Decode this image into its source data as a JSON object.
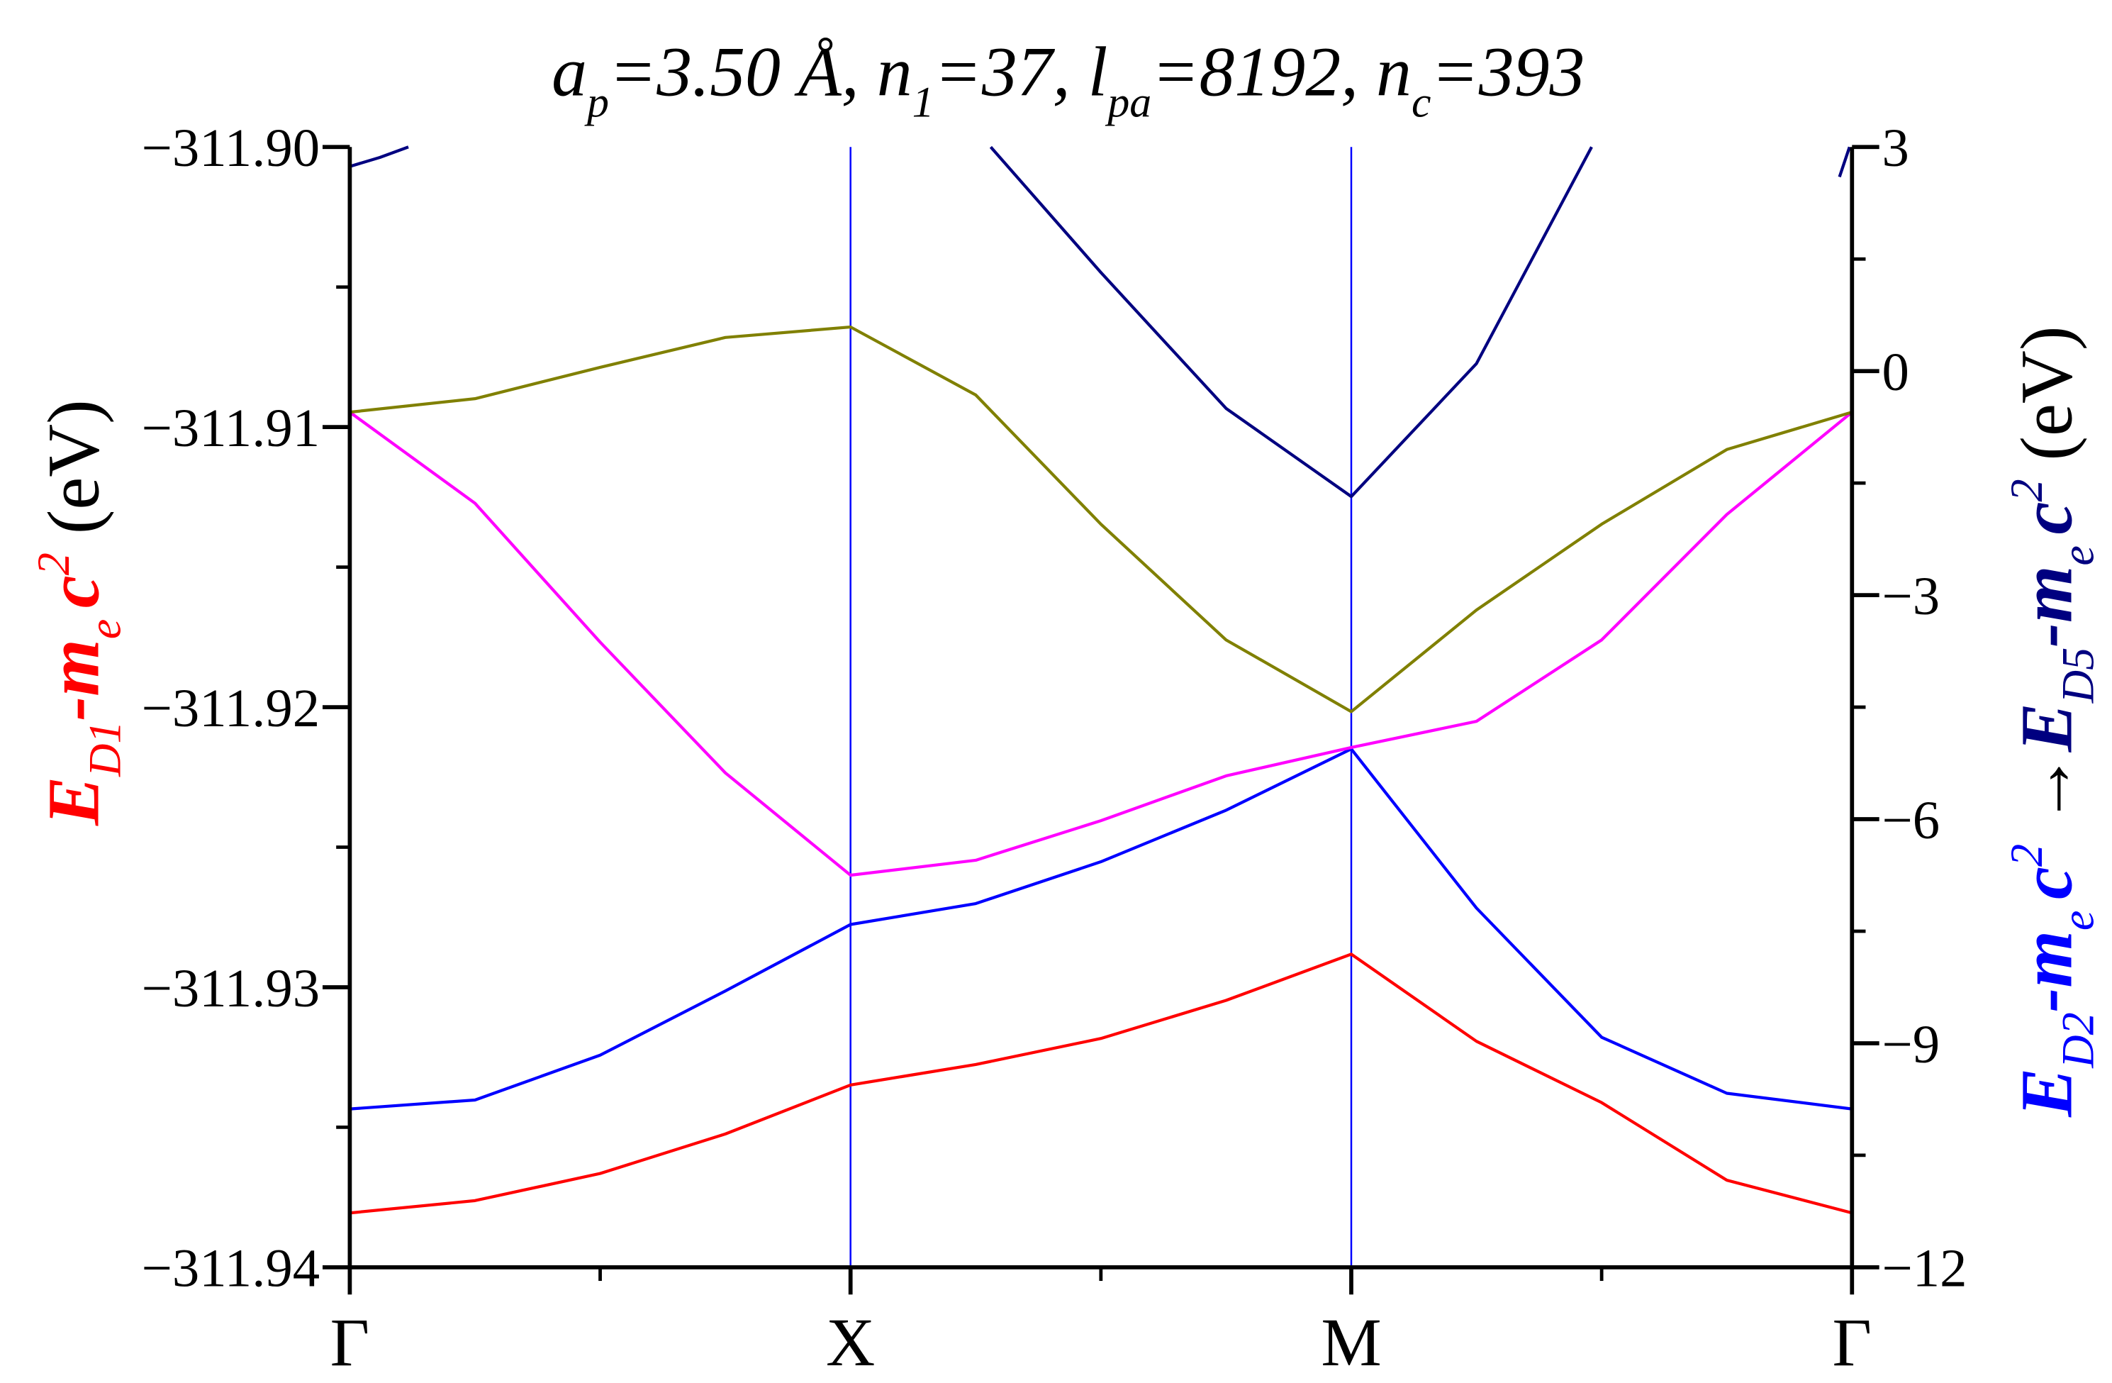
{
  "chart_data": {
    "type": "line",
    "title": [
      "a",
      "p",
      "=3.50 Å, ",
      "n",
      "1",
      "=37, ",
      "l",
      "pa",
      "=8192, ",
      "n",
      "c",
      "=393"
    ],
    "ylabel": [
      "E",
      "D1",
      "-m",
      "e",
      "c",
      "2",
      "(eV)"
    ],
    "y2label": [
      "E",
      "D2",
      "-m",
      "e",
      "c",
      "2",
      "→",
      "E",
      "D5",
      "-m",
      "e",
      "c",
      "2",
      "(eV)"
    ],
    "x": [
      0,
      0.25,
      0.5,
      0.75,
      1,
      1.25,
      1.5,
      1.75,
      2,
      2.25,
      2.5,
      2.75,
      3
    ],
    "xlim": [
      0,
      3
    ],
    "xticks": [
      {
        "value": 0,
        "label": "Γ"
      },
      {
        "value": 1,
        "label": "X"
      },
      {
        "value": 2,
        "label": "M"
      },
      {
        "value": 3,
        "label": "Γ"
      }
    ],
    "xgrid_color": "#0000ff",
    "ylim": [
      -311.94,
      -311.9
    ],
    "yticks": [
      {
        "value": -311.94,
        "label": "−311.94"
      },
      {
        "value": -311.93,
        "label": "−311.93"
      },
      {
        "value": -311.92,
        "label": "−311.92"
      },
      {
        "value": -311.91,
        "label": "−311.91"
      },
      {
        "value": -311.9,
        "label": "−311.90"
      }
    ],
    "y2lim": [
      -12,
      3
    ],
    "y2ticks": [
      {
        "value": -12,
        "label": "−12"
      },
      {
        "value": -9,
        "label": "−9"
      },
      {
        "value": -6,
        "label": "−6"
      },
      {
        "value": -3,
        "label": "−3"
      },
      0,
      3
    ],
    "series": [
      {
        "color": "#ff0000",
        "values": [
          -311.93806,
          -311.93762,
          -311.93665,
          -311.93524,
          -311.93349,
          -311.93276,
          -311.93183,
          -311.93047,
          -311.92882,
          -311.93193,
          -311.93412,
          -311.93689,
          -311.93806
        ]
      },
      {
        "color": "#0000ff",
        "axis": "y2",
        "values": [
          -9.88,
          -9.76,
          -9.16,
          -8.3,
          -7.41,
          -7.13,
          -6.57,
          -5.88,
          -5.06,
          -7.19,
          -8.92,
          -9.67,
          -9.88
        ]
      },
      {
        "color": "#ff00ff",
        "axis": "y2",
        "values": [
          -0.55,
          -1.77,
          -3.63,
          -5.38,
          -6.75,
          -6.55,
          -6.02,
          -5.42,
          -5.04,
          -4.69,
          -3.6,
          -1.92,
          -0.55
        ]
      },
      {
        "color": "#808000",
        "axis": "y2",
        "values": [
          -0.55,
          -0.37,
          0.05,
          0.45,
          0.59,
          -0.32,
          -2.05,
          -3.6,
          -4.56,
          -3.2,
          -2.05,
          -1.05,
          -0.55
        ]
      },
      {
        "color": "#000080",
        "axis": "y2",
        "x": [
          0,
          0.06,
          0.117,
          null,
          1.28,
          1.5,
          1.75,
          2,
          2.25,
          2.48,
          null,
          2.975,
          2.995
        ],
        "values": [
          2.74,
          2.86,
          3.0,
          null,
          3.0,
          1.32,
          -0.5,
          -1.68,
          0.1,
          3.0,
          null,
          2.6,
          3.0
        ]
      }
    ]
  }
}
